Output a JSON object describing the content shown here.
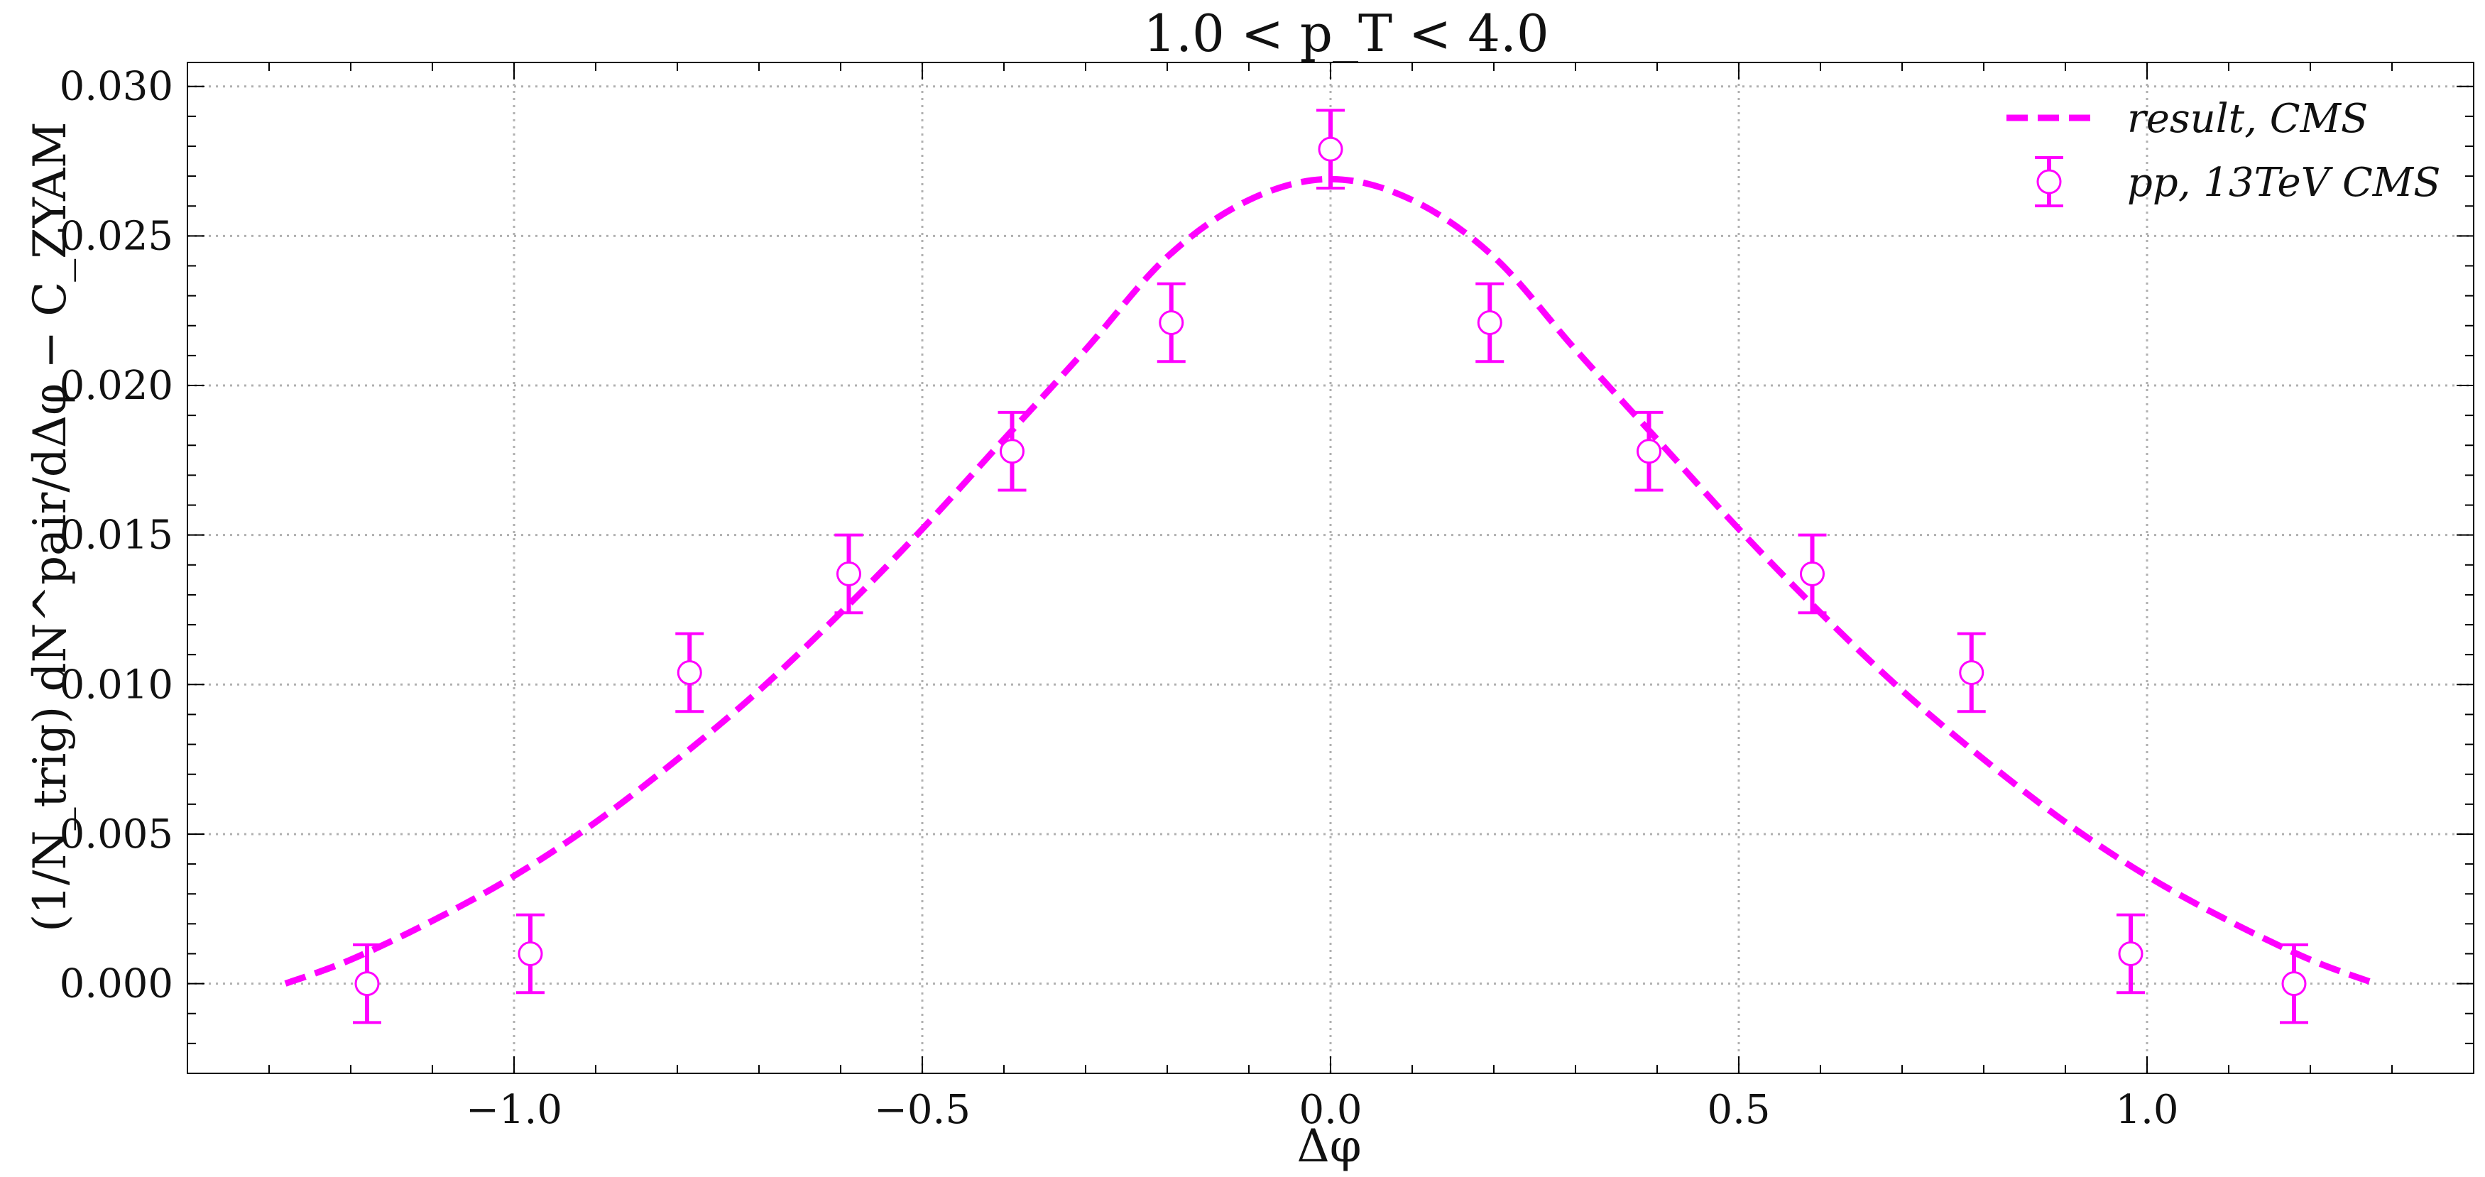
{
  "colors": {
    "series": "#ff00ff",
    "grid": "#b0b0b0",
    "axis": "#000000",
    "background": "#ffffff"
  },
  "chart_data": {
    "type": "line",
    "title": "1.0 < p_T < 4.0",
    "xlabel": "Δφ",
    "ylabel": "(1/N_trig) dN^pair/dΔφ − C_ZYAM",
    "xlim": [
      -1.4,
      1.4
    ],
    "ylim": [
      -0.003,
      0.0308
    ],
    "xticks": [
      -1.0,
      -0.5,
      0.0,
      0.5,
      1.0
    ],
    "xtick_labels": [
      "−1.0",
      "−0.5",
      "0.0",
      "0.5",
      "1.0"
    ],
    "yticks": [
      0.0,
      0.005,
      0.01,
      0.015,
      0.02,
      0.025,
      0.03
    ],
    "ytick_labels": [
      "0.000",
      "0.005",
      "0.010",
      "0.015",
      "0.020",
      "0.025",
      "0.030"
    ],
    "grid": true,
    "legend_position": "top-right",
    "series": [
      {
        "name": "result, CMS",
        "kind": "dashed-line",
        "x": [
          -1.28,
          -1.2,
          -1.1,
          -1.0,
          -0.9,
          -0.8,
          -0.7,
          -0.6,
          -0.5,
          -0.4,
          -0.3,
          -0.2,
          -0.1,
          0.0,
          0.1,
          0.2,
          0.3,
          0.4,
          0.5,
          0.6,
          0.7,
          0.8,
          0.9,
          1.0,
          1.1,
          1.2,
          1.28
        ],
        "y": [
          0.0,
          0.0008,
          0.0021,
          0.0036,
          0.0054,
          0.0075,
          0.0098,
          0.0124,
          0.0152,
          0.0182,
          0.0212,
          0.0243,
          0.0262,
          0.0269,
          0.0262,
          0.0243,
          0.0212,
          0.0182,
          0.0152,
          0.0124,
          0.0098,
          0.0075,
          0.0054,
          0.0036,
          0.0021,
          0.0008,
          0.0
        ]
      },
      {
        "name": "pp, 13TeV CMS",
        "kind": "errorbar",
        "x": [
          -1.18,
          -0.98,
          -0.785,
          -0.59,
          -0.39,
          -0.195,
          0.0,
          0.195,
          0.39,
          0.59,
          0.785,
          0.98,
          1.18
        ],
        "y": [
          0.0,
          0.001,
          0.0104,
          0.0137,
          0.0178,
          0.0221,
          0.0279,
          0.0221,
          0.0178,
          0.0137,
          0.0104,
          0.001,
          0.0
        ],
        "yerr": [
          0.0013,
          0.0013,
          0.0013,
          0.0013,
          0.0013,
          0.0013,
          0.0013,
          0.0013,
          0.0013,
          0.0013,
          0.0013,
          0.0013,
          0.0013
        ]
      }
    ]
  }
}
